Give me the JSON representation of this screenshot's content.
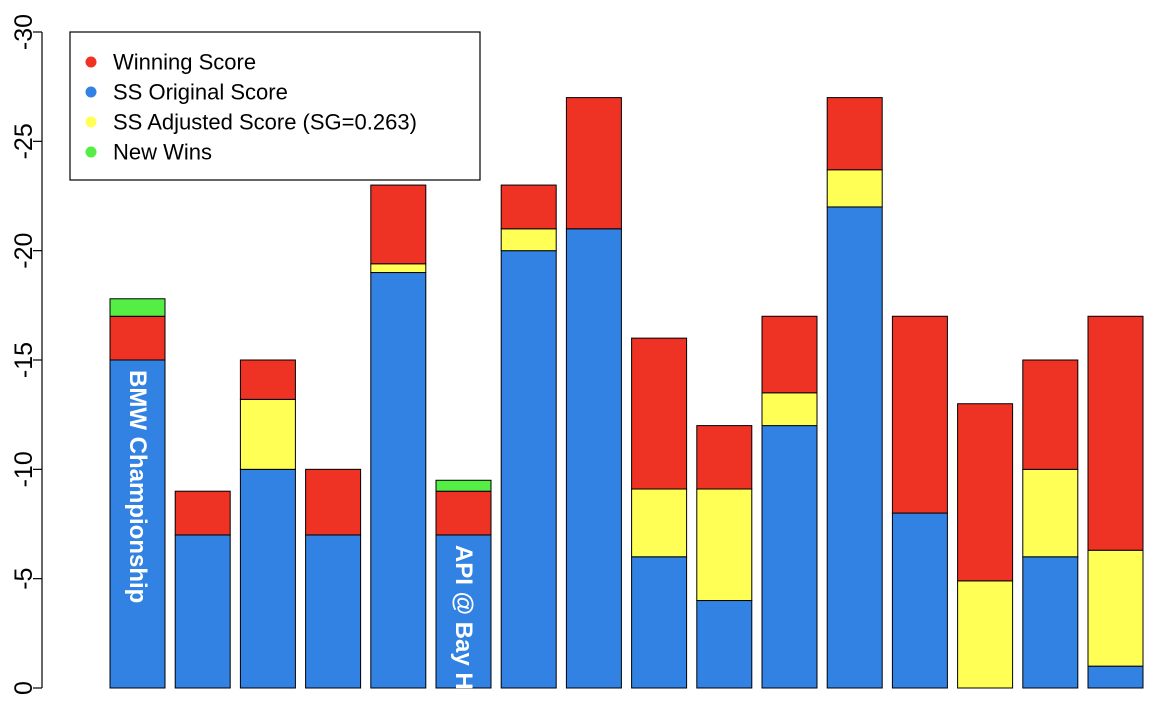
{
  "chart_data": {
    "type": "bar",
    "stacked": true,
    "y_axis_reversed": true,
    "ylim": [
      0,
      -30
    ],
    "yticks": [
      "0",
      "-5",
      "-10",
      "-15",
      "-20",
      "-25",
      "-30"
    ],
    "grid": false,
    "legend_position": "top-left",
    "legend": [
      {
        "label": "Winning Score",
        "color": "#ee3224"
      },
      {
        "label": "SS Original Score",
        "color": "#3182e2"
      },
      {
        "label": "SS Adjusted Score (SG=0.263)",
        "color": "#ffff55"
      },
      {
        "label": "New Wins",
        "color": "#55ee44"
      }
    ],
    "bars": [
      {
        "original": -15,
        "adjusted": -15,
        "winning": -17,
        "new_win": -17.8,
        "label": "BMW Championship"
      },
      {
        "original": -7,
        "adjusted": -7,
        "winning": -9
      },
      {
        "original": -10,
        "adjusted": -13.2,
        "winning": -15
      },
      {
        "original": -7,
        "adjusted": -7,
        "winning": -10
      },
      {
        "original": -19,
        "adjusted": -19.4,
        "winning": -23
      },
      {
        "original": -7,
        "adjusted": -7,
        "winning": -9,
        "new_win": -9.5,
        "label": "API @ Bay Hill"
      },
      {
        "original": -20,
        "adjusted": -21,
        "winning": -23
      },
      {
        "original": -21,
        "adjusted": -21,
        "winning": -27
      },
      {
        "original": -6,
        "adjusted": -9.1,
        "winning": -16
      },
      {
        "original": -4,
        "adjusted": -9.1,
        "winning": -12
      },
      {
        "original": -12,
        "adjusted": -13.5,
        "winning": -17
      },
      {
        "original": -22,
        "adjusted": -23.7,
        "winning": -27
      },
      {
        "original": -8,
        "adjusted": -8,
        "winning": -17
      },
      {
        "original": 0,
        "adjusted": -4.9,
        "winning": -13
      },
      {
        "original": -6,
        "adjusted": -10,
        "winning": -15
      },
      {
        "original": -1,
        "adjusted": -6.3,
        "winning": -17
      }
    ]
  }
}
